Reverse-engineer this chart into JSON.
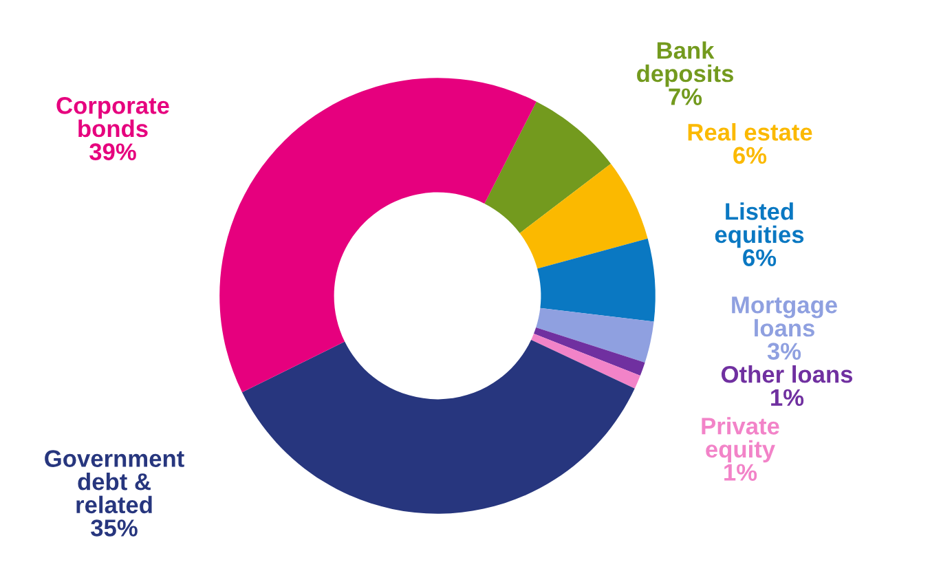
{
  "chart_data": {
    "type": "donut",
    "categories": [
      "Bank\ndeposits",
      "Real estate",
      "Listed\nequities",
      "Mortgage\nloans",
      "Other loans",
      "Private\nequity",
      "Government\ndebt &\nrelated",
      "Corporate\nbonds"
    ],
    "values": [
      7,
      6,
      6,
      3,
      1,
      1,
      35,
      39
    ],
    "colors": [
      "#739a1e",
      "#fbb900",
      "#0a78c2",
      "#8fa0e0",
      "#7030a0",
      "#f283c8",
      "#27367e",
      "#e6007e"
    ],
    "value_labels": [
      "7%",
      "6%",
      "6%",
      "3%",
      "1%",
      "1%",
      "35%",
      "39%"
    ],
    "legend": false
  }
}
